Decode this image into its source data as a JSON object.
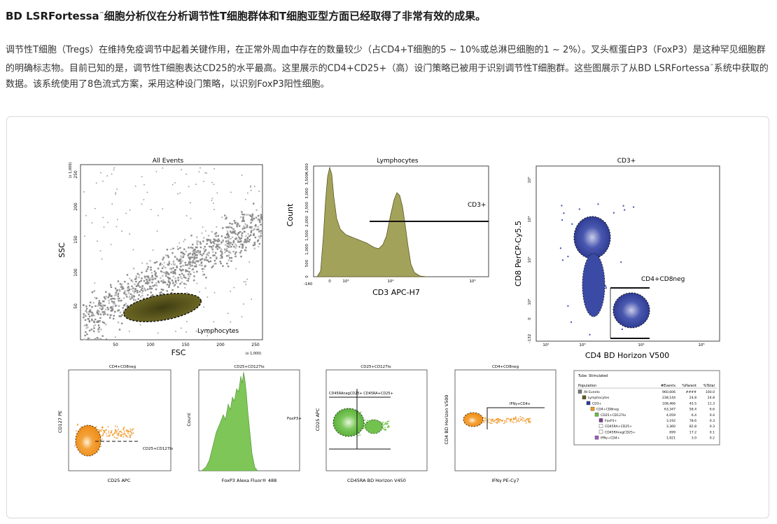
{
  "header": {
    "brand": "BD LSRFortessa",
    "tm": "™",
    "title_rest": "细胞分析仪在分析调节性T细胞群体和T细胞亚型方面已经取得了非常有效的成果。"
  },
  "paragraph": {
    "part1": "调节性T细胞（Tregs）在维持免疫调节中起着关键作用，在正常外周血中存在的数量较少（占CD4+T细胞的5 ~ 10%或总淋巴细胞的1 ~ 2%）。叉头框蛋白P3（FoxP3）是这种罕见细胞群的明确标志物。目前已知的是，调节性T细胞表达CD25的水平最高。这里展示的CD4+CD25+（高）设门策略已被用于识别调节性T细胞群。这些图展示了从BD LSRFortessa",
    "tm": "™",
    "part2": "系统中获取的数据。该系统使用了8色流式方案，采用这种设门策略，以识别FoxP3阳性细胞。"
  },
  "plot1": {
    "title": "All Events",
    "xlabel": "FSC",
    "ylabel": "SSC",
    "xunit": "(x 1,000)",
    "yunit": "(x 1,000)",
    "xticks": [
      "50",
      "100",
      "150",
      "200",
      "250"
    ],
    "yticks": [
      "50",
      "100",
      "150",
      "200",
      "250"
    ],
    "gate_label": "Lymphocytes"
  },
  "plot2": {
    "title": "Lymphocytes",
    "xlabel": "CD3 APC-H7",
    "ylabel": "Count",
    "xticks": [
      "-140",
      "0",
      "10³",
      "10⁴",
      "10⁵"
    ],
    "yticks": [
      "0",
      "500",
      "1,000",
      "1,500",
      "2,000",
      "2,500",
      "3,000",
      "3,500",
      "4,000"
    ],
    "gate_label": "CD3+"
  },
  "plot3": {
    "title": "CD3+",
    "xlabel": "CD4 BD Horizon V500",
    "ylabel": "CD8 PerCP-Cy5.5",
    "xticks": [
      "10²",
      "10³",
      "10⁴",
      "10⁵"
    ],
    "yticks": [
      "-132",
      "0",
      "10²",
      "10³",
      "10⁴",
      "10⁵"
    ],
    "gate_label": "CD4+CD8neg"
  },
  "plot4": {
    "title": "CD4+CD8neg",
    "xlabel": "CD25 APC",
    "ylabel": "CD127 PE",
    "gate_label": "CD25+CD127lo"
  },
  "plot5": {
    "title": "CD25+CD127lo",
    "xlabel": "FoxP3 Alexa Fluor® 488",
    "ylabel": "Count",
    "gate_label": "FoxP3+"
  },
  "plot6": {
    "title": "CD25+CD127lo",
    "xlabel": "CD45RA BD Horizon V450",
    "ylabel": "CD25 APC",
    "gate_label": "CD45RAnegCD25+ CD45RA+CD25+"
  },
  "plot7": {
    "title": "CD4+CD8neg",
    "xlabel": "IFNγ PE-Cy7",
    "ylabel": "CD4 BD Horizon V500",
    "gate_label": "IFNγ+CD4+"
  },
  "table": {
    "tube_label": "Tube: Stimulated",
    "headers": [
      "Population",
      "#Events",
      "%Parent",
      "%Total"
    ],
    "rows": [
      {
        "name": "All Events",
        "events": "960,606",
        "parent": "####",
        "total": "100.0",
        "color": "#777777"
      },
      {
        "name": "Lymphocytes",
        "events": "238,144",
        "parent": "24.8",
        "total": "24.8",
        "color": "#5f5a1e"
      },
      {
        "name": "CD3+",
        "events": "108,466",
        "parent": "45.5",
        "total": "11.3",
        "color": "#2b3d9c"
      },
      {
        "name": "CD4+CD8neg",
        "events": "63,347",
        "parent": "58.4",
        "total": "6.6",
        "color": "#f39a1f"
      },
      {
        "name": "CD25+CD127lo",
        "events": "4,059",
        "parent": "6.4",
        "total": "0.4",
        "color": "#6cc04a"
      },
      {
        "name": "FoxP3+",
        "events": "3,192",
        "parent": "78.6",
        "total": "0.3",
        "color": "#7a3f96"
      },
      {
        "name": "CD45RA+CD25+",
        "events": "3,360",
        "parent": "82.8",
        "total": "0.3",
        "color": "#ffffff"
      },
      {
        "name": "CD45RAnegCD25+",
        "events": "699",
        "parent": "17.2",
        "total": "0.1",
        "color": "#ffffff"
      },
      {
        "name": "IFNγ+CD4+",
        "events": "1,921",
        "parent": "3.0",
        "total": "0.2",
        "color": "#a25cc0"
      }
    ]
  }
}
